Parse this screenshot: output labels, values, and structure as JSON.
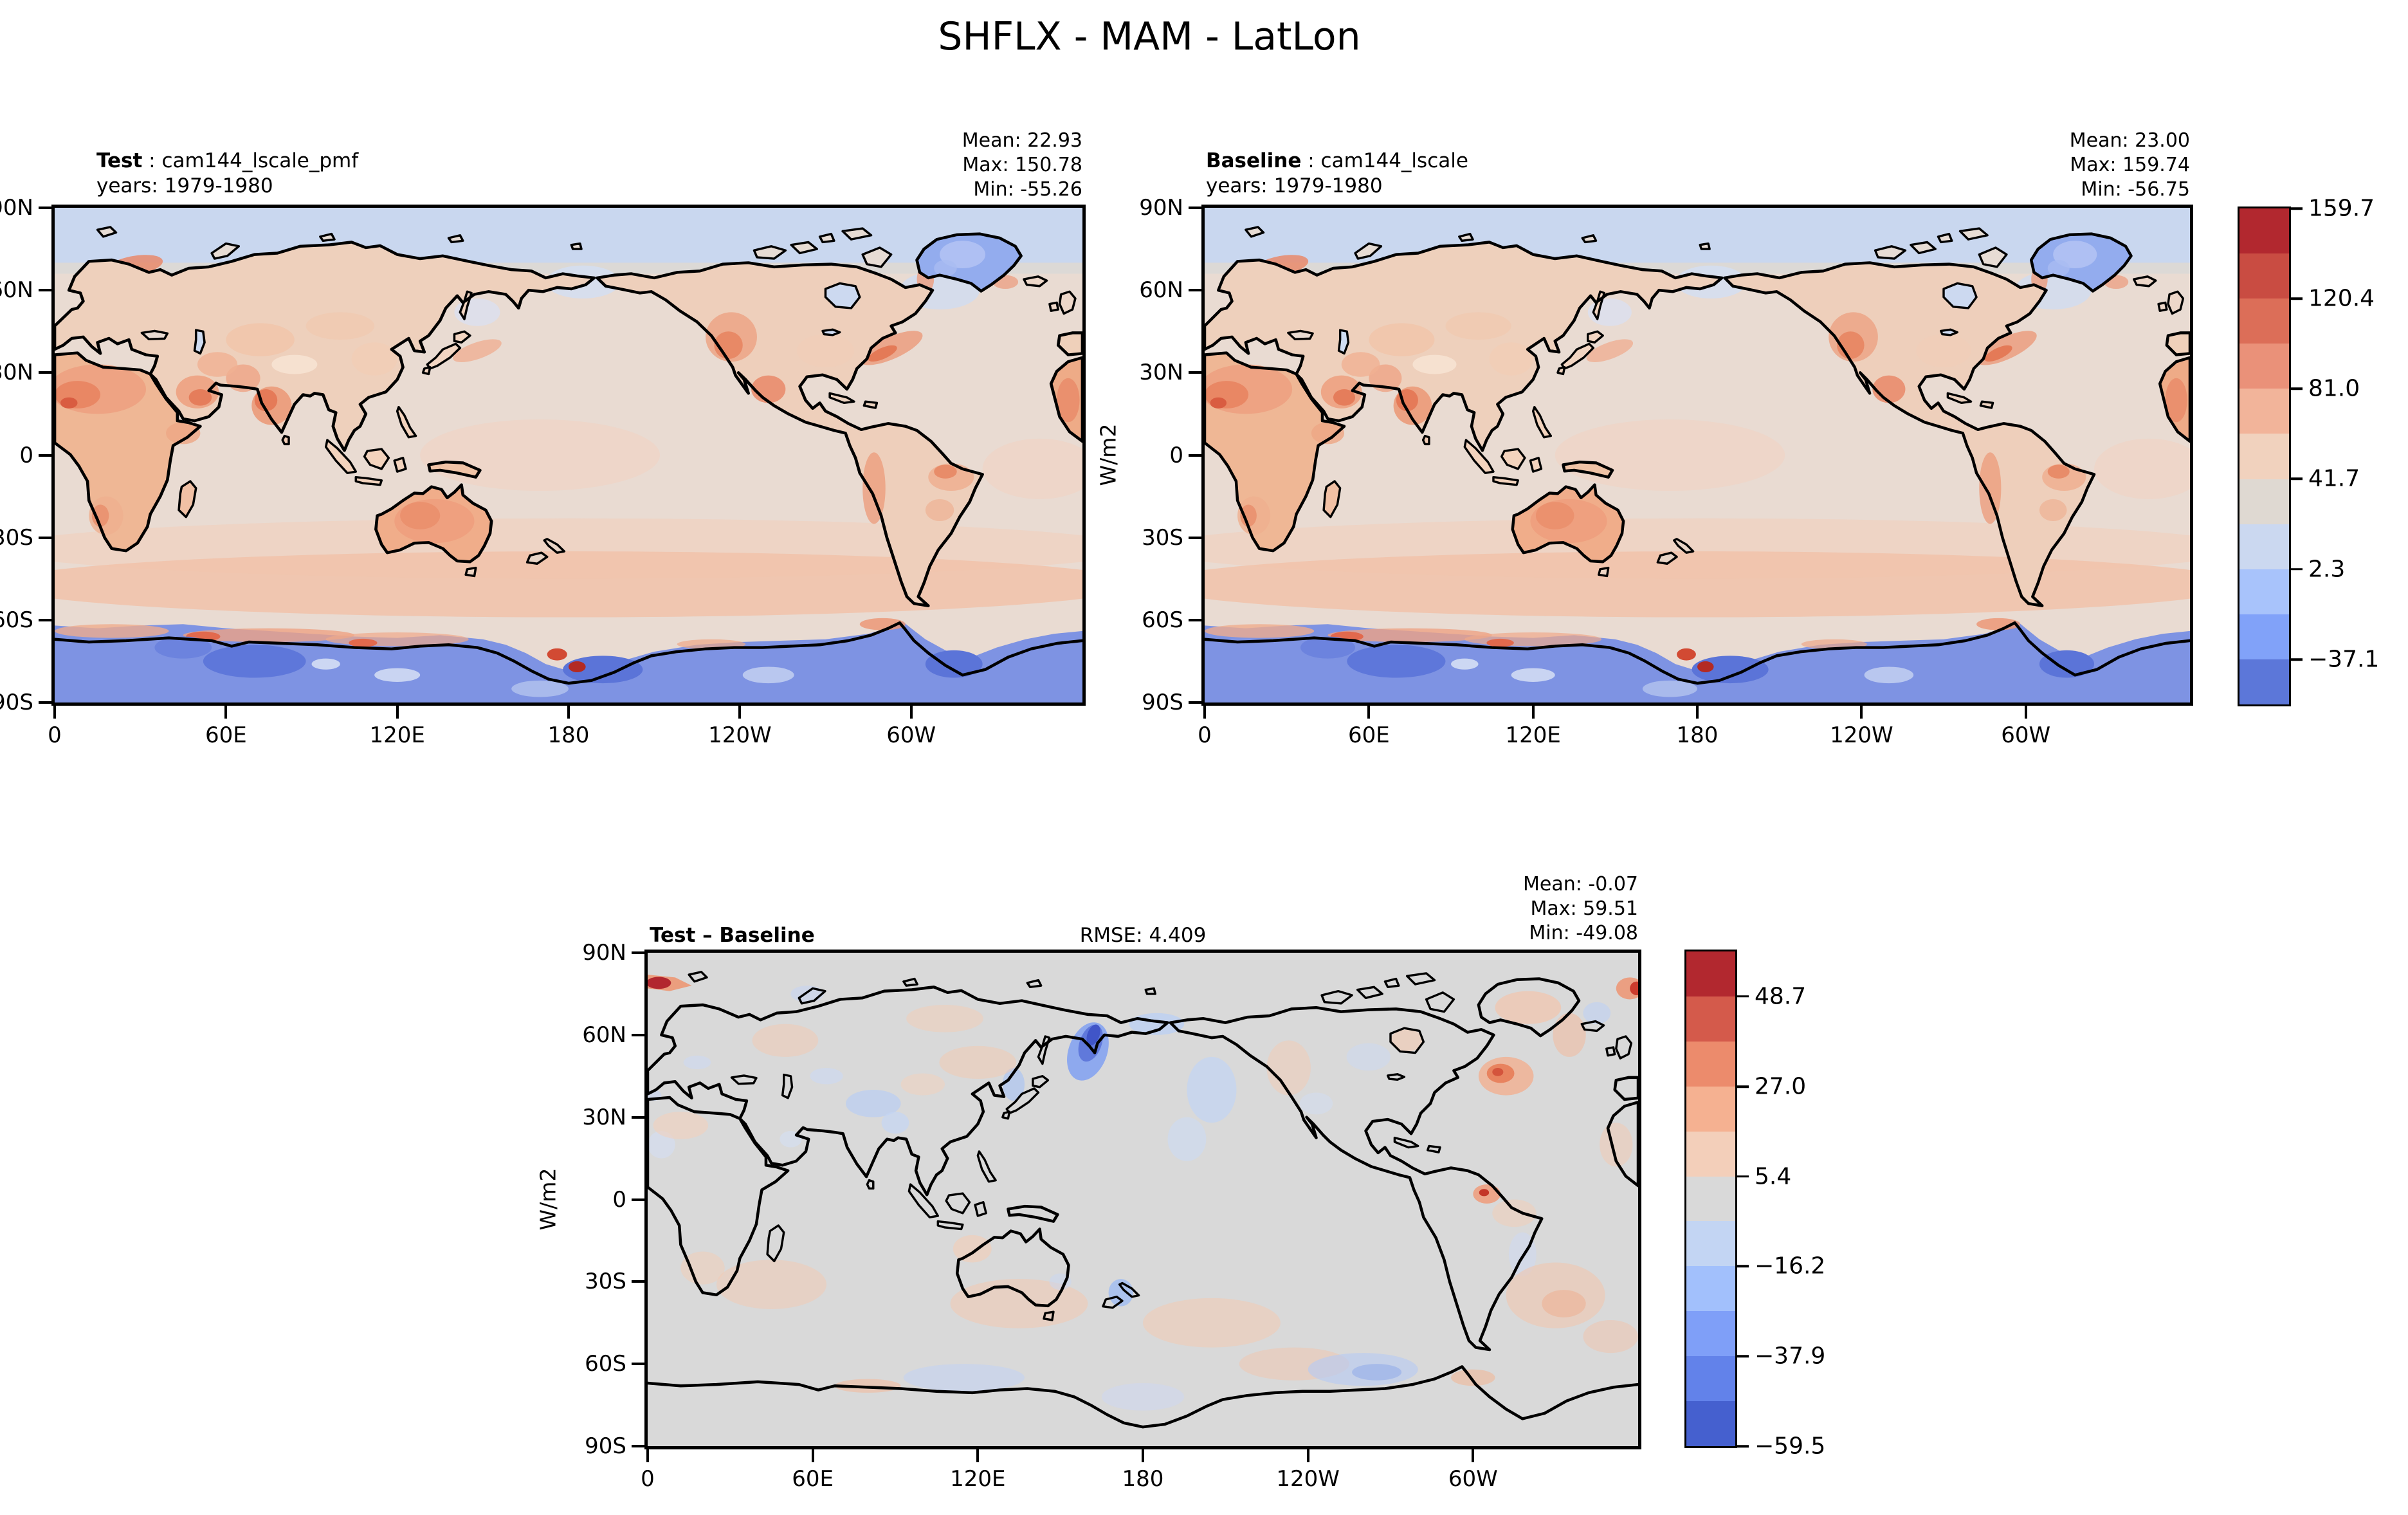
{
  "title": "SHFLX - MAM - LatLon",
  "panels": {
    "test": {
      "name": "Test",
      "name_rest": " : cam144_lscale_pmf",
      "years": "years: 1979-1980",
      "mean": "Mean: 22.93",
      "max": "Max: 150.78",
      "min": "Min: -55.26"
    },
    "baseline": {
      "name": "Baseline",
      "name_rest": " : cam144_lscale",
      "years": "years: 1979-1980",
      "mean": "Mean: 23.00",
      "max": "Max: 159.74",
      "min": "Min: -56.75"
    },
    "diff": {
      "name": "Test – Baseline",
      "rmse": "RMSE: 4.409",
      "mean": "Mean: -0.07",
      "max": "Max: 59.51",
      "min": "Min: -49.08"
    }
  },
  "axes": {
    "ylabel": "W/m2",
    "lat_ticks": [
      "90N",
      "60N",
      "30N",
      "0",
      "30S",
      "60S",
      "90S"
    ],
    "lon_ticks": [
      "0",
      "60E",
      "120E",
      "180",
      "120W",
      "60W"
    ]
  },
  "colorbars": {
    "top": {
      "segments": [
        "#b2282f",
        "#c94c42",
        "#dc6e58",
        "#ea9179",
        "#f2b49a",
        "#f1d2be",
        "#dfd9d2",
        "#cbd8f0",
        "#a8c3fb",
        "#81a2f9",
        "#5c77d9"
      ],
      "ticks": [
        {
          "label": "159.7",
          "pos": 0.0
        },
        {
          "label": "120.4",
          "pos": 0.1816
        },
        {
          "label": "81.0",
          "pos": 0.3637
        },
        {
          "label": "41.7",
          "pos": 0.5453
        },
        {
          "label": "2.3",
          "pos": 0.7274
        },
        {
          "label": "−37.1",
          "pos": 0.9094
        }
      ]
    },
    "bottom": {
      "segments": [
        "#b2282f",
        "#d45a4b",
        "#ec8b6c",
        "#f5b191",
        "#f3cfba",
        "#d9d9d9",
        "#c3d5f3",
        "#a2c0fc",
        "#7f9ff8",
        "#6282ea",
        "#4560cf"
      ],
      "ticks": [
        {
          "label": "48.7",
          "pos": 0.0908
        },
        {
          "label": "27.0",
          "pos": 0.2731
        },
        {
          "label": "5.4",
          "pos": 0.4546
        },
        {
          "label": "−16.2",
          "pos": 0.6361
        },
        {
          "label": "−37.9",
          "pos": 0.8185
        },
        {
          "label": "−59.5",
          "pos": 1.0
        }
      ]
    }
  },
  "chart_data": {
    "type": "heatmap",
    "title": "SHFLX - MAM - LatLon",
    "variable": "SHFLX",
    "season": "MAM",
    "projection": "LatLon",
    "units": "W/m2",
    "lat_ticks": [
      "90N",
      "60N",
      "30N",
      "0",
      "30S",
      "60S",
      "90S"
    ],
    "lon_ticks": [
      "0",
      "60E",
      "120E",
      "180",
      "120W",
      "60W"
    ],
    "panels": [
      {
        "name": "Test",
        "source": "cam144_lscale_pmf",
        "years": "1979-1980",
        "mean": 22.93,
        "max": 150.78,
        "min": -55.26,
        "colorbar_tick_values": [
          159.7,
          120.4,
          81.0,
          41.7,
          2.3,
          -37.1
        ]
      },
      {
        "name": "Baseline",
        "source": "cam144_lscale",
        "years": "1979-1980",
        "mean": 23.0,
        "max": 159.74,
        "min": -56.75,
        "colorbar_tick_values": [
          159.7,
          120.4,
          81.0,
          41.7,
          2.3,
          -37.1
        ]
      },
      {
        "name": "Test – Baseline",
        "rmse": 4.409,
        "mean": -0.07,
        "max": 59.51,
        "min": -49.08,
        "colorbar_tick_values": [
          48.7,
          27.0,
          5.4,
          -16.2,
          -37.9,
          -59.5
        ]
      }
    ],
    "legend_position": "right",
    "grid": false
  }
}
